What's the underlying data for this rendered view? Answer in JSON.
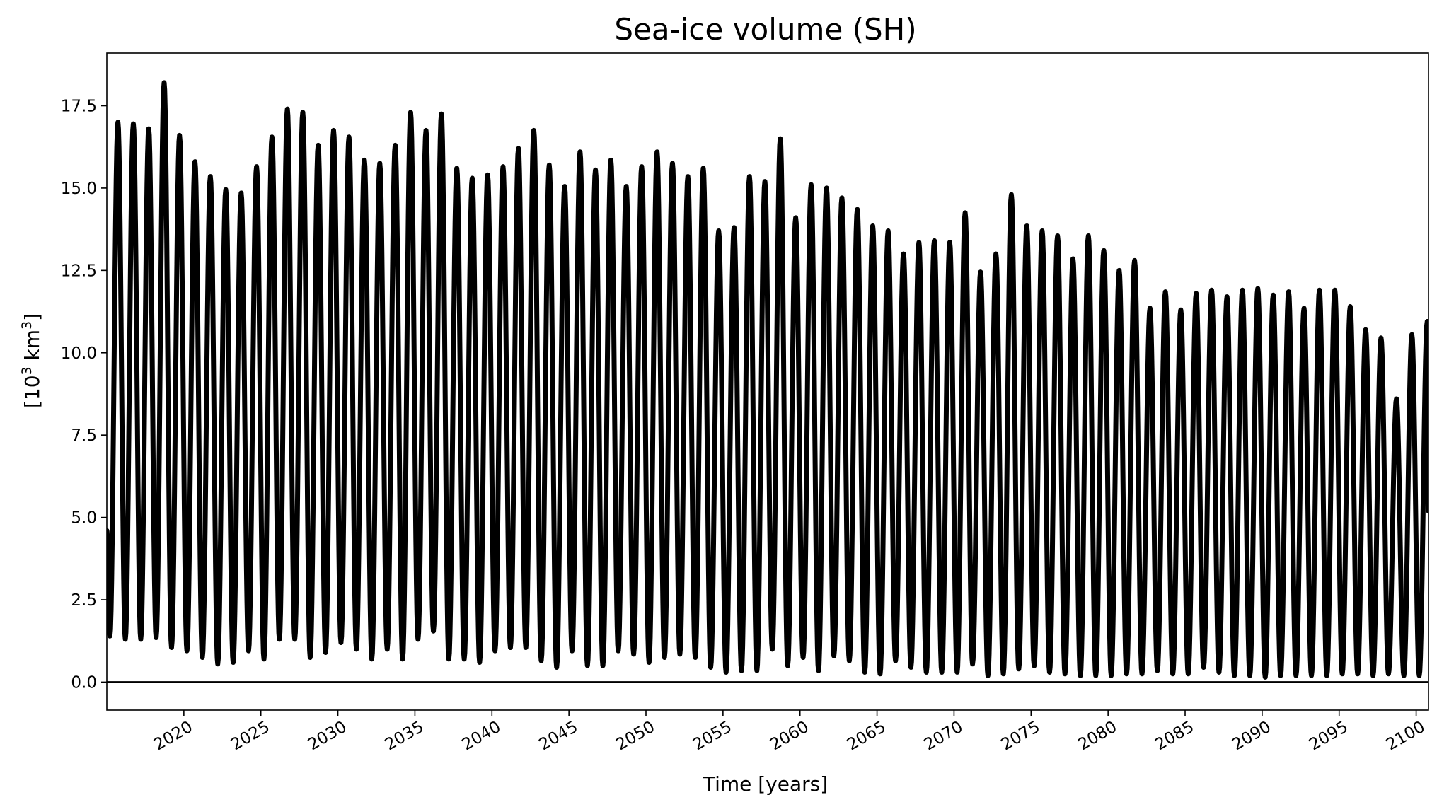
{
  "chart_data": {
    "type": "line",
    "title": "Sea-ice volume (SH)",
    "xlabel": "Time [years]",
    "ylabel_main": "[10",
    "ylabel_sup": "3",
    "ylabel_unit": " km",
    "ylabel_unit_sup": "3",
    "ylabel_close": "]",
    "xlim": [
      2015.0,
      2100.8
    ],
    "ylim": [
      -0.85,
      19.1
    ],
    "x_ticks": [
      2020,
      2025,
      2030,
      2035,
      2040,
      2045,
      2050,
      2055,
      2060,
      2065,
      2070,
      2075,
      2080,
      2085,
      2090,
      2095,
      2100
    ],
    "x_tick_labels": [
      "2020",
      "2025",
      "2030",
      "2035",
      "2040",
      "2045",
      "2050",
      "2055",
      "2060",
      "2065",
      "2070",
      "2075",
      "2080",
      "2085",
      "2090",
      "2095",
      "2100"
    ],
    "y_ticks": [
      0.0,
      2.5,
      5.0,
      7.5,
      10.0,
      12.5,
      15.0,
      17.5
    ],
    "y_tick_labels": [
      "0.0",
      "2.5",
      "5.0",
      "7.5",
      "10.0",
      "12.5",
      "15.0",
      "17.5"
    ],
    "reference_line_y": 0.0,
    "line_color": "#000000",
    "seasonal_cycle": {
      "start_value": 4.6,
      "end_value": 5.2,
      "peak_position_in_year": 0.72,
      "min_position_in_year": 0.2
    },
    "series": [
      {
        "peaks": [
          [
            2015.72,
            17.0
          ],
          [
            2016.72,
            16.95
          ],
          [
            2017.72,
            16.8
          ],
          [
            2018.72,
            18.2
          ],
          [
            2019.72,
            16.6
          ],
          [
            2020.72,
            15.8
          ],
          [
            2021.72,
            15.35
          ],
          [
            2022.72,
            14.95
          ],
          [
            2023.72,
            14.85
          ],
          [
            2024.72,
            15.65
          ],
          [
            2025.72,
            16.55
          ],
          [
            2026.72,
            17.4
          ],
          [
            2027.72,
            17.3
          ],
          [
            2028.72,
            16.3
          ],
          [
            2029.72,
            16.75
          ],
          [
            2030.72,
            16.55
          ],
          [
            2031.72,
            15.85
          ],
          [
            2032.72,
            15.75
          ],
          [
            2033.72,
            16.3
          ],
          [
            2034.72,
            17.3
          ],
          [
            2035.72,
            16.75
          ],
          [
            2036.72,
            17.25
          ],
          [
            2037.72,
            15.6
          ],
          [
            2038.72,
            15.3
          ],
          [
            2039.72,
            15.4
          ],
          [
            2040.72,
            15.65
          ],
          [
            2041.72,
            16.2
          ],
          [
            2042.72,
            16.75
          ],
          [
            2043.72,
            15.7
          ],
          [
            2044.72,
            15.05
          ],
          [
            2045.72,
            16.1
          ],
          [
            2046.72,
            15.55
          ],
          [
            2047.72,
            15.85
          ],
          [
            2048.72,
            15.05
          ],
          [
            2049.72,
            15.65
          ],
          [
            2050.72,
            16.1
          ],
          [
            2051.72,
            15.75
          ],
          [
            2052.72,
            15.35
          ],
          [
            2053.72,
            15.6
          ],
          [
            2054.72,
            13.7
          ],
          [
            2055.72,
            13.8
          ],
          [
            2056.72,
            15.35
          ],
          [
            2057.72,
            15.2
          ],
          [
            2058.72,
            16.5
          ],
          [
            2059.72,
            14.1
          ],
          [
            2060.72,
            15.1
          ],
          [
            2061.72,
            15.0
          ],
          [
            2062.72,
            14.7
          ],
          [
            2063.72,
            14.35
          ],
          [
            2064.72,
            13.85
          ],
          [
            2065.72,
            13.7
          ],
          [
            2066.72,
            13.0
          ],
          [
            2067.72,
            13.35
          ],
          [
            2068.72,
            13.4
          ],
          [
            2069.72,
            13.35
          ],
          [
            2070.72,
            14.25
          ],
          [
            2071.72,
            12.45
          ],
          [
            2072.72,
            13.0
          ],
          [
            2073.72,
            14.8
          ],
          [
            2074.72,
            13.85
          ],
          [
            2075.72,
            13.7
          ],
          [
            2076.72,
            13.55
          ],
          [
            2077.72,
            12.85
          ],
          [
            2078.72,
            13.55
          ],
          [
            2079.72,
            13.1
          ],
          [
            2080.72,
            12.5
          ],
          [
            2081.72,
            12.8
          ],
          [
            2082.72,
            11.35
          ],
          [
            2083.72,
            11.85
          ],
          [
            2084.72,
            11.3
          ],
          [
            2085.72,
            11.8
          ],
          [
            2086.72,
            11.9
          ],
          [
            2087.72,
            11.7
          ],
          [
            2088.72,
            11.9
          ],
          [
            2089.72,
            11.95
          ],
          [
            2090.72,
            11.75
          ],
          [
            2091.72,
            11.85
          ],
          [
            2092.72,
            11.35
          ],
          [
            2093.72,
            11.9
          ],
          [
            2094.72,
            11.9
          ],
          [
            2095.72,
            11.4
          ],
          [
            2096.72,
            10.7
          ],
          [
            2097.72,
            10.45
          ],
          [
            2098.72,
            8.6
          ],
          [
            2099.72,
            10.55
          ],
          [
            2100.72,
            10.95
          ]
        ],
        "troughs": [
          [
            2015.2,
            1.4
          ],
          [
            2016.2,
            1.3
          ],
          [
            2017.2,
            1.3
          ],
          [
            2018.2,
            1.35
          ],
          [
            2019.2,
            1.05
          ],
          [
            2020.2,
            0.95
          ],
          [
            2021.2,
            0.75
          ],
          [
            2022.2,
            0.55
          ],
          [
            2023.2,
            0.6
          ],
          [
            2024.2,
            0.95
          ],
          [
            2025.2,
            0.7
          ],
          [
            2026.2,
            1.3
          ],
          [
            2027.2,
            1.3
          ],
          [
            2028.2,
            0.75
          ],
          [
            2029.2,
            0.9
          ],
          [
            2030.2,
            1.2
          ],
          [
            2031.2,
            1.0
          ],
          [
            2032.2,
            0.7
          ],
          [
            2033.2,
            1.0
          ],
          [
            2034.2,
            0.7
          ],
          [
            2035.2,
            1.3
          ],
          [
            2036.2,
            1.55
          ],
          [
            2037.2,
            0.7
          ],
          [
            2038.2,
            0.7
          ],
          [
            2039.2,
            0.6
          ],
          [
            2040.2,
            0.95
          ],
          [
            2041.2,
            1.05
          ],
          [
            2042.2,
            1.05
          ],
          [
            2043.2,
            0.65
          ],
          [
            2044.2,
            0.45
          ],
          [
            2045.2,
            0.95
          ],
          [
            2046.2,
            0.5
          ],
          [
            2047.2,
            0.5
          ],
          [
            2048.2,
            0.95
          ],
          [
            2049.2,
            0.85
          ],
          [
            2050.2,
            0.6
          ],
          [
            2051.2,
            0.75
          ],
          [
            2052.2,
            0.85
          ],
          [
            2053.2,
            0.75
          ],
          [
            2054.2,
            0.45
          ],
          [
            2055.2,
            0.3
          ],
          [
            2056.2,
            0.35
          ],
          [
            2057.2,
            0.35
          ],
          [
            2058.2,
            1.0
          ],
          [
            2059.2,
            0.5
          ],
          [
            2060.2,
            0.75
          ],
          [
            2061.2,
            0.35
          ],
          [
            2062.2,
            0.8
          ],
          [
            2063.2,
            0.65
          ],
          [
            2064.2,
            0.3
          ],
          [
            2065.2,
            0.25
          ],
          [
            2066.2,
            0.65
          ],
          [
            2067.2,
            0.45
          ],
          [
            2068.2,
            0.3
          ],
          [
            2069.2,
            0.3
          ],
          [
            2070.2,
            0.3
          ],
          [
            2071.2,
            0.55
          ],
          [
            2072.2,
            0.2
          ],
          [
            2073.2,
            0.25
          ],
          [
            2074.2,
            0.4
          ],
          [
            2075.2,
            0.5
          ],
          [
            2076.2,
            0.3
          ],
          [
            2077.2,
            0.25
          ],
          [
            2078.2,
            0.2
          ],
          [
            2079.2,
            0.2
          ],
          [
            2080.2,
            0.2
          ],
          [
            2081.2,
            0.25
          ],
          [
            2082.2,
            0.25
          ],
          [
            2083.2,
            0.35
          ],
          [
            2084.2,
            0.25
          ],
          [
            2085.2,
            0.25
          ],
          [
            2086.2,
            0.45
          ],
          [
            2087.2,
            0.3
          ],
          [
            2088.2,
            0.2
          ],
          [
            2089.2,
            0.2
          ],
          [
            2090.2,
            0.15
          ],
          [
            2091.2,
            0.2
          ],
          [
            2092.2,
            0.2
          ],
          [
            2093.2,
            0.2
          ],
          [
            2094.2,
            0.2
          ],
          [
            2095.2,
            0.25
          ],
          [
            2096.2,
            0.25
          ],
          [
            2097.2,
            0.2
          ],
          [
            2098.2,
            0.25
          ],
          [
            2099.2,
            0.2
          ],
          [
            2100.2,
            0.2
          ]
        ]
      }
    ]
  }
}
